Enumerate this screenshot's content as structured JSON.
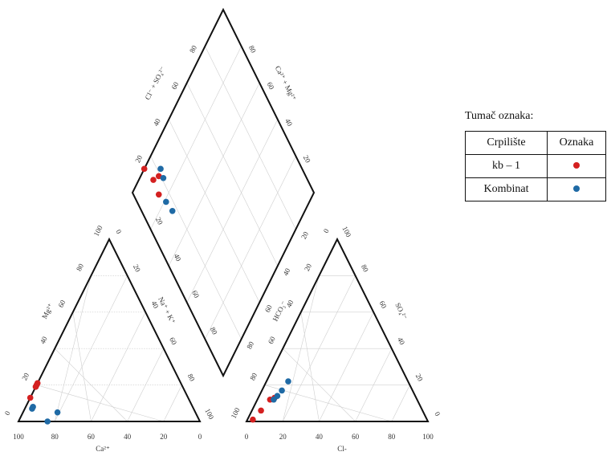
{
  "legend": {
    "title": "Tumač oznaka:",
    "header_site": "Crpilište",
    "header_mark": "Oznaka",
    "rows": [
      {
        "site": "kb – 1",
        "color": "#d42020"
      },
      {
        "site": "Kombinat",
        "color": "#1f6aa5"
      }
    ]
  },
  "chart_data": {
    "type": "scatter",
    "subtype": "piper-diagram",
    "grid": true,
    "legend_placement": "right",
    "ticks": [
      "0",
      "20",
      "40",
      "60",
      "80",
      "100"
    ],
    "colors": {
      "kb-1": "#d42020",
      "Kombinat": "#1f6aa5"
    },
    "cation_triangle": {
      "bottom_axis_label": "Ca²⁺",
      "left_axis_label": "Mg²⁺",
      "right_axis_label": "Na⁺ + K⁺",
      "series": [
        {
          "name": "kb – 1",
          "points": [
            {
              "Ca": 84,
              "Mg": 19
            },
            {
              "Ca": 85,
              "Mg": 20
            },
            {
              "Ca": 79,
              "Mg": 21
            },
            {
              "Ca": 88,
              "Mg": 13
            }
          ]
        },
        {
          "name": "Kombinat",
          "points": [
            {
              "Ca": 89,
              "Mg": 7
            },
            {
              "Ca": 88,
              "Mg": 8
            },
            {
              "Ca": 84,
              "Mg": 0
            },
            {
              "Ca": 76,
              "Mg": 5
            }
          ]
        }
      ]
    },
    "anion_triangle": {
      "bottom_axis_label": "Cl-",
      "left_axis_label": "HCO₃⁻",
      "right_axis_label": "SO₄²⁻",
      "series": [
        {
          "name": "kb – 1",
          "points": [
            {
              "Cl": 3,
              "SO4": 1
            },
            {
              "Cl": 5,
              "SO4": 6
            },
            {
              "Cl": 7,
              "SO4": 12
            },
            {
              "Cl": 9,
              "SO4": 13
            }
          ]
        },
        {
          "name": "Kombinat",
          "points": [
            {
              "Cl": 9,
              "SO4": 12
            },
            {
              "Cl": 10,
              "SO4": 14
            },
            {
              "Cl": 11,
              "SO4": 17
            },
            {
              "Cl": 12,
              "SO4": 22
            }
          ]
        }
      ]
    },
    "diamond": {
      "left_axis_label": "Cl⁻ + SO₄²⁻",
      "right_axis_label": "Ca²⁺ + Mg²⁺",
      "series": [
        {
          "name": "kb – 1",
          "points": [
            {
              "ClSO4": 13,
              "CaMg": 100
            },
            {
              "ClSO4": 15,
              "CaMg": 92
            },
            {
              "ClSO4": 19,
              "CaMg": 90
            },
            {
              "ClSO4": 14,
              "CaMg": 85
            }
          ]
        },
        {
          "name": "Kombinat",
          "points": [
            {
              "ClSO4": 22,
              "CaMg": 91
            },
            {
              "ClSO4": 21,
              "CaMg": 87
            },
            {
              "ClSO4": 16,
              "CaMg": 79
            },
            {
              "ClSO4": 17,
              "CaMg": 73
            }
          ]
        }
      ]
    }
  }
}
